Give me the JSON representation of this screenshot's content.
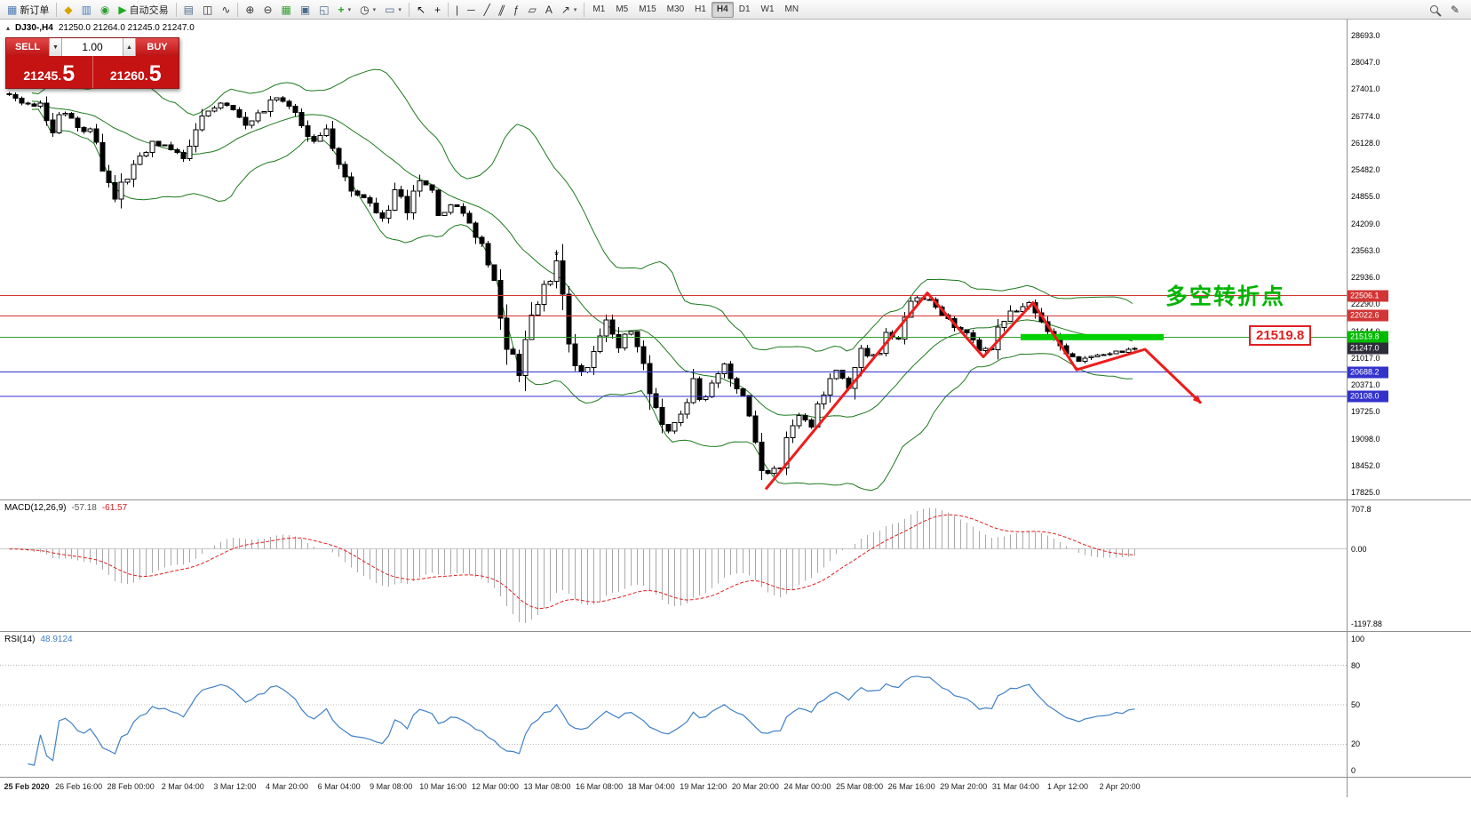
{
  "icons": {
    "dropdown": "▾",
    "chevron_down": "▼",
    "chevron_up": "▲",
    "symbol_marker": "▴",
    "star": "*"
  },
  "toolbar": {
    "items": [
      {
        "name": "new-order-button",
        "glyph": "▦",
        "color": "#4a7ab5",
        "label": "新订单"
      },
      {
        "sep": true
      },
      {
        "name": "metaeditor-icon",
        "glyph": "◆",
        "color": "#d8a400"
      },
      {
        "name": "market-watch-icon",
        "glyph": "▥",
        "color": "#4a7ab5"
      },
      {
        "name": "navigator-icon",
        "glyph": "◉",
        "color": "#2f9e2f"
      },
      {
        "name": "autotrading-button",
        "glyph": "▶",
        "color": "#1faa1f",
        "label": "自动交易"
      },
      {
        "sep": true
      },
      {
        "name": "ohlc-bars-icon",
        "glyph": "▤",
        "color": "#4a6a8a"
      },
      {
        "name": "candlestick-chart-icon",
        "glyph": "◫",
        "color": "#333333"
      },
      {
        "name": "line-chart-icon",
        "glyph": "∿",
        "color": "#333333"
      },
      {
        "sep": true
      },
      {
        "name": "zoom-in-icon",
        "glyph": "⊕",
        "color": "#333333"
      },
      {
        "name": "zoom-out-icon",
        "glyph": "⊖",
        "color": "#333333"
      },
      {
        "name": "grid-icon",
        "glyph": "▦",
        "color": "#2f9e2f"
      },
      {
        "name": "tile-windows-icon",
        "glyph": "▣",
        "color": "#4a6a8a"
      },
      {
        "name": "cascade-windows-icon",
        "glyph": "◱",
        "color": "#4a6a8a"
      },
      {
        "name": "add-indicator-button",
        "glyph": "+",
        "color": "#1faa1f",
        "bold": true,
        "dd": true
      },
      {
        "name": "period-selector-button",
        "glyph": "◷",
        "color": "#333333",
        "dd": true
      },
      {
        "name": "template-button",
        "glyph": "▭",
        "color": "#4a6a8a",
        "dd": true
      },
      {
        "sep": true
      },
      {
        "name": "cursor-icon",
        "glyph": "↖",
        "color": "#111111"
      },
      {
        "name": "crosshair-icon",
        "glyph": "+",
        "color": "#111111"
      },
      {
        "sep": true
      },
      {
        "name": "vertical-line-icon",
        "glyph": "|",
        "color": "#333333"
      },
      {
        "name": "horizontal-line-icon",
        "glyph": "─",
        "color": "#333333"
      },
      {
        "name": "trendline-icon",
        "glyph": "╱",
        "color": "#333333"
      },
      {
        "name": "channel-icon",
        "glyph": "∥",
        "color": "#333333",
        "slant": true
      },
      {
        "name": "fibonacci-icon",
        "glyph": "ƒ",
        "color": "#333333"
      },
      {
        "name": "shapes-icon",
        "glyph": "▱",
        "color": "#333333"
      },
      {
        "name": "text-label-icon",
        "glyph": "A",
        "color": "#333333"
      },
      {
        "name": "arrows-tool-icon",
        "glyph": "↗",
        "color": "#333333",
        "dd": true
      },
      {
        "sep": true
      }
    ],
    "timeframes": [
      "M1",
      "M5",
      "M15",
      "M30",
      "H1",
      "H4",
      "D1",
      "W1",
      "MN"
    ],
    "active_timeframe": "H4",
    "right_icons": [
      {
        "name": "search-icon",
        "shape": "magnifier"
      },
      {
        "name": "compose-icon",
        "glyph": "✎",
        "color": "#333333"
      }
    ]
  },
  "chart": {
    "title": "DJ30-,H4",
    "ohlc": "21250.0 21264.0 21245.0 21247.0"
  },
  "trade_panel": {
    "sell_label": "SELL",
    "buy_label": "BUY",
    "volume": "1.00",
    "sell_price": "21245.",
    "sell_price_big": "5",
    "buy_price": "21260.",
    "buy_price_big": "5"
  },
  "price_scale": {
    "top_price": 28693.0,
    "bottom_price": 17825.0,
    "labels": [
      "28693.0",
      "28047.0",
      "27401.0",
      "26774.0",
      "26128.0",
      "25482.0",
      "24855.0",
      "24209.0",
      "23563.0",
      "22936.0",
      "22290.0",
      "21644.0",
      "21017.0",
      "20371.0",
      "19725.0",
      "19098.0",
      "18452.0",
      "17825.0"
    ]
  },
  "levels": [
    {
      "label": "22506.1",
      "price": 22506.1,
      "line": "#d23535",
      "tag": "#d23535"
    },
    {
      "label": "22022.6",
      "price": 22022.6,
      "line": "#d23535",
      "tag": "#d23535"
    },
    {
      "label": "21519.8",
      "price": 21519.8,
      "line": "#2f9e2f",
      "tag": "#00bb00"
    },
    {
      "label": "21247.0",
      "price": 21247.0,
      "line": null,
      "tag": "#2d2d3a"
    },
    {
      "label": "20688.2",
      "price": 20688.2,
      "line": "#3333cc",
      "tag": "#3333cc"
    },
    {
      "label": "20108.0",
      "price": 20108.0,
      "line": "#3333cc",
      "tag": "#3333cc"
    }
  ],
  "green_band": {
    "price": 21519.8,
    "bar_start": 163,
    "bar_end": 186,
    "color": "#00d000"
  },
  "star_marker": {
    "bar": 88,
    "price": 23380
  },
  "zigzag": {
    "color": "#ee1c1c",
    "width": 3,
    "points": [
      [
        122,
        17900
      ],
      [
        148,
        22570
      ],
      [
        157,
        21050
      ],
      [
        165,
        22340
      ],
      [
        172,
        20740
      ],
      [
        183,
        21230
      ],
      [
        192,
        19950
      ]
    ]
  },
  "annotation": {
    "text": "多空转折点",
    "color": "#00b400"
  },
  "callout": {
    "text": "21519.8",
    "color": "#e02020"
  },
  "macd": {
    "label": "MACD(12,26,9)",
    "value1": "-57.18",
    "value2": "-61.57",
    "scale_top": "707.8",
    "scale_zero": "0.00",
    "scale_bottom": "-1197.88",
    "histogram_color": "#a9a9a9",
    "signal_color": "#e02020"
  },
  "rsi": {
    "label": "RSI(14)",
    "value": "48.9124",
    "scale": [
      "100",
      "80",
      "50",
      "20",
      "0"
    ],
    "levels": [
      80,
      50,
      20
    ],
    "color": "#3f80c6"
  },
  "time_axis": {
    "labels": [
      "25 Feb 2020",
      "26 Feb 16:00",
      "28 Feb 00:00",
      "2 Mar 04:00",
      "3 Mar 12:00",
      "4 Mar 20:00",
      "6 Mar 04:00",
      "9 Mar 08:00",
      "10 Mar 16:00",
      "12 Mar 00:00",
      "13 Mar 08:00",
      "16 Mar 08:00",
      "18 Mar 04:00",
      "19 Mar 12:00",
      "20 Mar 20:00",
      "24 Mar 00:00",
      "25 Mar 08:00",
      "26 Mar 16:00",
      "29 Mar 20:00",
      "31 Mar 04:00",
      "1 Apr 12:00",
      "2 Apr 20:00"
    ]
  },
  "chart_data": {
    "type": "candlestick",
    "symbol": "DJ30-",
    "timeframe": "H4",
    "bars": 182,
    "ylim": [
      17825.0,
      28693.0
    ],
    "current_ohlc": {
      "open": 21250.0,
      "high": 21264.0,
      "low": 21245.0,
      "close": 21247.0
    },
    "overlays": [
      "Bollinger Bands (20,2)"
    ],
    "indicators": [
      "MACD(12,26,9)",
      "RSI(14)"
    ],
    "price_path": [
      [
        0,
        27250
      ],
      [
        5,
        26950
      ],
      [
        7,
        26500
      ],
      [
        9,
        26900
      ],
      [
        13,
        26300
      ],
      [
        17,
        24850
      ],
      [
        20,
        25550
      ],
      [
        23,
        26200
      ],
      [
        28,
        25800
      ],
      [
        32,
        26900
      ],
      [
        35,
        27100
      ],
      [
        38,
        26600
      ],
      [
        43,
        27200
      ],
      [
        46,
        26900
      ],
      [
        49,
        26100
      ],
      [
        51,
        26350
      ],
      [
        53,
        25600
      ],
      [
        56,
        24900
      ],
      [
        60,
        24400
      ],
      [
        62,
        25000
      ],
      [
        64,
        24600
      ],
      [
        67,
        25400
      ],
      [
        69,
        24300
      ],
      [
        71,
        24700
      ],
      [
        74,
        24200
      ],
      [
        76,
        23500
      ],
      [
        78,
        22600
      ],
      [
        80,
        21300
      ],
      [
        82,
        20900
      ],
      [
        84,
        22000
      ],
      [
        86,
        22700
      ],
      [
        88,
        23000
      ],
      [
        90,
        21700
      ],
      [
        92,
        20500
      ],
      [
        94,
        21200
      ],
      [
        96,
        21800
      ],
      [
        98,
        21100
      ],
      [
        100,
        21900
      ],
      [
        102,
        20800
      ],
      [
        104,
        19800
      ],
      [
        106,
        19300
      ],
      [
        108,
        19600
      ],
      [
        110,
        20300
      ],
      [
        111,
        19900
      ],
      [
        113,
        20500
      ],
      [
        115,
        20900
      ],
      [
        117,
        20300
      ],
      [
        119,
        19500
      ],
      [
        121,
        18300
      ],
      [
        123,
        18200
      ],
      [
        125,
        19100
      ],
      [
        127,
        19600
      ],
      [
        129,
        19400
      ],
      [
        131,
        20200
      ],
      [
        133,
        20700
      ],
      [
        135,
        20500
      ],
      [
        137,
        21200
      ],
      [
        139,
        21000
      ],
      [
        141,
        21600
      ],
      [
        143,
        21500
      ],
      [
        145,
        22300
      ],
      [
        146,
        22450
      ],
      [
        148,
        22400
      ],
      [
        150,
        22100
      ],
      [
        152,
        21800
      ],
      [
        154,
        21600
      ],
      [
        156,
        21300
      ],
      [
        157,
        21100
      ],
      [
        159,
        21700
      ],
      [
        161,
        22100
      ],
      [
        163,
        22250
      ],
      [
        164,
        22300
      ],
      [
        166,
        22000
      ],
      [
        168,
        21500
      ],
      [
        170,
        21200
      ],
      [
        172,
        20950
      ],
      [
        173,
        21000
      ],
      [
        175,
        21100
      ],
      [
        177,
        21150
      ],
      [
        179,
        21180
      ],
      [
        181,
        21247
      ]
    ]
  }
}
